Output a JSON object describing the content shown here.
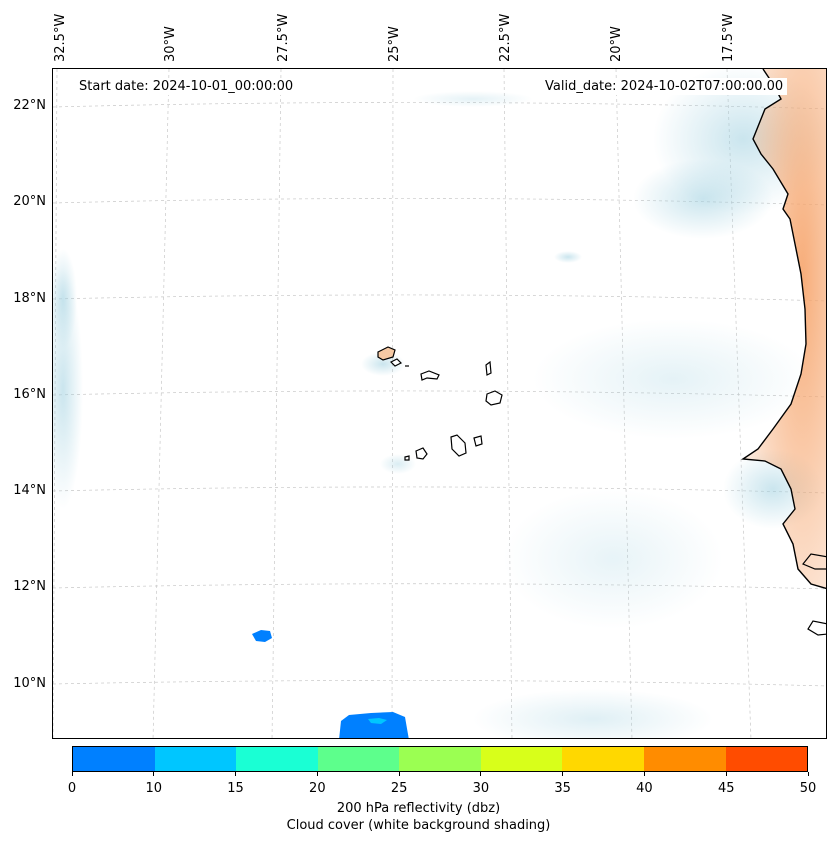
{
  "map": {
    "start_date": "Start date: 2024-10-01_00:00:00",
    "valid_date": "Valid_date: 2024-10-02T07:00:00.00",
    "lat_labels": [
      "22°N",
      "20°N",
      "18°N",
      "16°N",
      "14°N",
      "12°N",
      "10°N"
    ],
    "lon_labels": [
      "32.5°W",
      "30°W",
      "27.5°W",
      "25°W",
      "22.5°W",
      "20°W",
      "17.5°W"
    ],
    "land_color": "#f6a46b",
    "cloud_color": "#9fd0e0",
    "echo_color": "#0080ff"
  },
  "colorbar": {
    "colors": [
      "#0080ff",
      "#00c6ff",
      "#1affd4",
      "#5dff8c",
      "#9bff52",
      "#d8ff1a",
      "#ffd800",
      "#ff8c00",
      "#ff4c00"
    ],
    "ticks": [
      "0",
      "10",
      "15",
      "20",
      "25",
      "30",
      "35",
      "40",
      "45",
      "50"
    ],
    "label_line1": "200 hPa reflectivity (dbz)",
    "label_line2": "Cloud cover (white background shading)"
  }
}
